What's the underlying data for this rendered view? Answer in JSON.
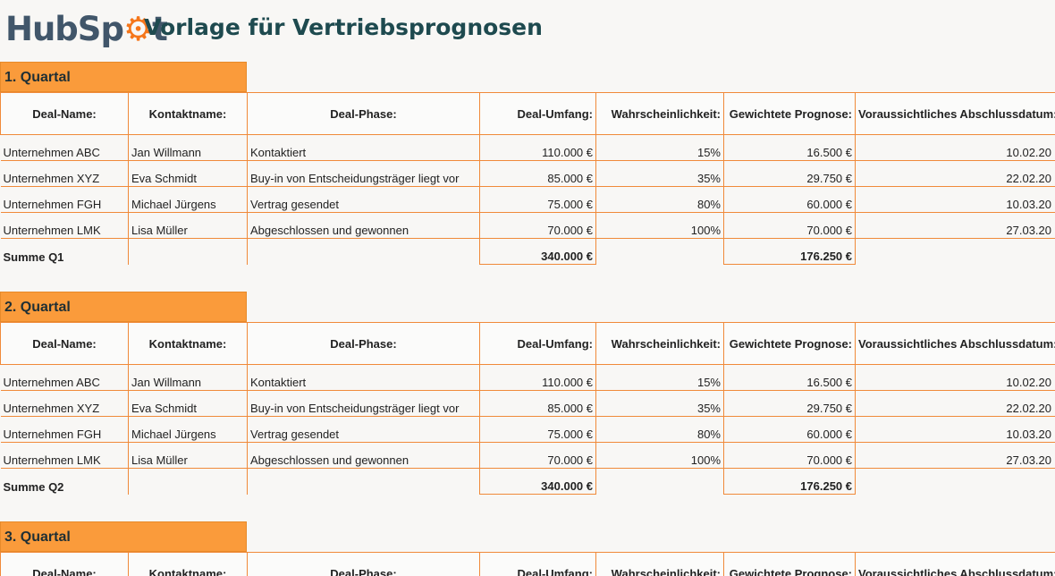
{
  "header": {
    "logo_text_1": "HubSp",
    "logo_text_2": "t",
    "title": "Vorlage für Vertriebsprognosen"
  },
  "columns": [
    "Deal-Name:",
    "Kontaktname:",
    "Deal-Phase:",
    "Deal-Umfang:",
    "Wahrscheinlichkeit:",
    "Gewichtete Prognose:",
    "Voraussichtliches Abschlussdatum:"
  ],
  "sections": [
    {
      "title": "1. Quartal",
      "rows": [
        [
          "Unternehmen ABC",
          "Jan Willmann",
          "Kontaktiert",
          "110.000 €",
          "15%",
          "16.500 €",
          "10.02.20"
        ],
        [
          "Unternehmen XYZ",
          "Eva Schmidt",
          "Buy-in von Entscheidungsträger liegt vor",
          "85.000 €",
          "35%",
          "29.750 €",
          "22.02.20"
        ],
        [
          "Unternehmen FGH",
          "Michael Jürgens",
          "Vertrag gesendet",
          "75.000 €",
          "80%",
          "60.000 €",
          "10.03.20"
        ],
        [
          "Unternehmen LMK",
          "Lisa Müller",
          "Abgeschlossen und gewonnen",
          "70.000 €",
          "100%",
          "70.000 €",
          "27.03.20"
        ]
      ],
      "sum_label": "Summe Q1",
      "sum_amount": "340.000 €",
      "sum_weighted": "176.250 €"
    },
    {
      "title": "2. Quartal",
      "rows": [
        [
          "Unternehmen ABC",
          "Jan Willmann",
          "Kontaktiert",
          "110.000 €",
          "15%",
          "16.500 €",
          "10.02.20"
        ],
        [
          "Unternehmen XYZ",
          "Eva Schmidt",
          "Buy-in von Entscheidungsträger liegt vor",
          "85.000 €",
          "35%",
          "29.750 €",
          "22.02.20"
        ],
        [
          "Unternehmen FGH",
          "Michael Jürgens",
          "Vertrag gesendet",
          "75.000 €",
          "80%",
          "60.000 €",
          "10.03.20"
        ],
        [
          "Unternehmen LMK",
          "Lisa Müller",
          "Abgeschlossen und gewonnen",
          "70.000 €",
          "100%",
          "70.000 €",
          "27.03.20"
        ]
      ],
      "sum_label": "Summe Q2",
      "sum_amount": "340.000 €",
      "sum_weighted": "176.250 €"
    },
    {
      "title": "3. Quartal"
    }
  ]
}
